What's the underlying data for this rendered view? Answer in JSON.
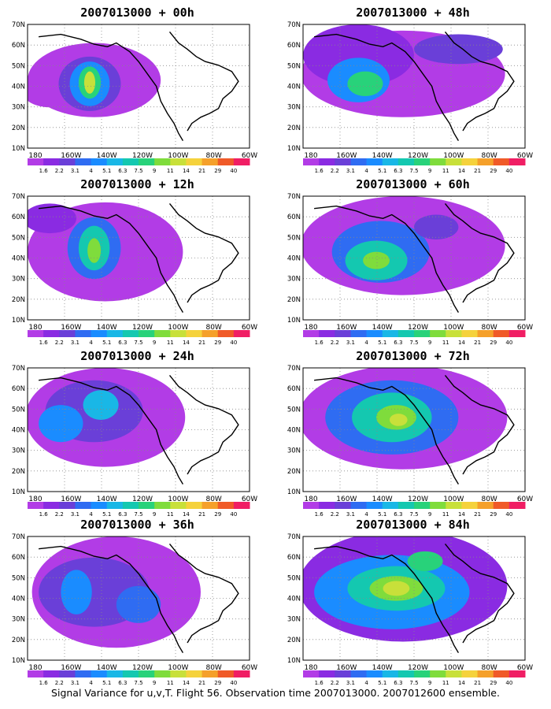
{
  "figure": {
    "footer": "Signal Variance for u,v,T. Flight 56. Observation time 2007013000. 2007012600 ensemble.",
    "lat_labels": [
      "10N",
      "20N",
      "30N",
      "40N",
      "50N",
      "60N",
      "70N"
    ],
    "lon_labels": [
      "180",
      "160W",
      "140W",
      "120W",
      "100W",
      "80W",
      "60W"
    ],
    "colorbar": {
      "labels": [
        "1.6",
        "2.2",
        "3.1",
        "4",
        "5.1",
        "6.3",
        "7.5",
        "9",
        "11",
        "14",
        "21",
        "29",
        "40"
      ],
      "colors": [
        "#b23ce6",
        "#8a2be2",
        "#6a3fd8",
        "#2f6cf2",
        "#1a8cff",
        "#19b7e6",
        "#14c8b0",
        "#28d27a",
        "#7fdc3c",
        "#c8e03a",
        "#f5d23c",
        "#f5a02a",
        "#f05a28",
        "#f01e64"
      ]
    },
    "panels": [
      {
        "title": "2007013000 + 00h"
      },
      {
        "title": "2007013000 + 48h"
      },
      {
        "title": "2007013000 + 12h"
      },
      {
        "title": "2007013000 + 60h"
      },
      {
        "title": "2007013000 + 24h"
      },
      {
        "title": "2007013000 + 72h"
      },
      {
        "title": "2007013000 + 36h"
      },
      {
        "title": "2007013000 + 84h"
      }
    ]
  }
}
